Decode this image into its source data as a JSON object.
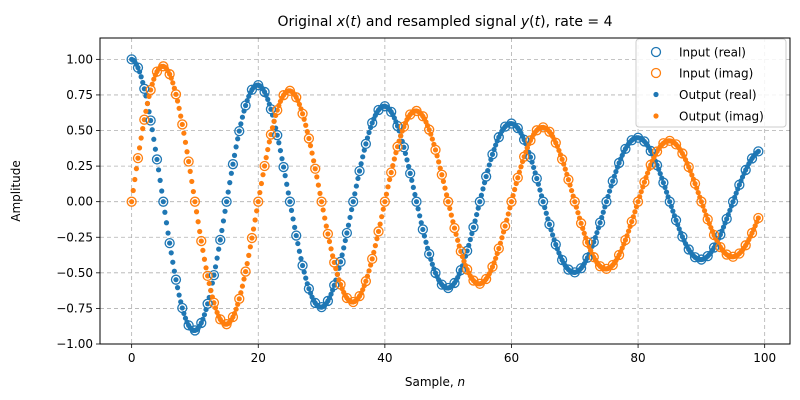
{
  "chart_data": {
    "type": "scatter",
    "title_parts": [
      "Original ",
      "x",
      "(",
      "t",
      ") and resampled signal ",
      "y",
      "(",
      "t",
      "), rate = 4"
    ],
    "xlabel_parts": [
      "Sample, ",
      "n"
    ],
    "ylabel": "Amplitude",
    "xlim": [
      -5,
      104
    ],
    "ylim": [
      -1.0,
      1.15
    ],
    "xticks": [
      0,
      20,
      40,
      60,
      80,
      100
    ],
    "xtick_labels": [
      "0",
      "20",
      "40",
      "60",
      "80",
      "100"
    ],
    "yticks": [
      -1.0,
      -0.75,
      -0.5,
      -0.25,
      0.0,
      0.25,
      0.5,
      0.75,
      1.0
    ],
    "ytick_labels": [
      "−1.00",
      "−0.75",
      "−0.50",
      "−0.25",
      "0.00",
      "0.25",
      "0.50",
      "0.75",
      "1.00"
    ],
    "grid": true,
    "legend_position": "top-right",
    "signal": {
      "frequency": 0.05,
      "decay": 0.01,
      "n_input": 100,
      "rate": 4
    },
    "series": [
      {
        "name": "Input (real)",
        "marker": "open-circle",
        "color": "#1f77b4",
        "part": "real",
        "sampling": "input"
      },
      {
        "name": "Input (imag)",
        "marker": "open-circle",
        "color": "#ff7f0e",
        "part": "imag",
        "sampling": "input"
      },
      {
        "name": "Output (real)",
        "marker": "dot",
        "color": "#1f77b4",
        "part": "real",
        "sampling": "output"
      },
      {
        "name": "Output (imag)",
        "marker": "dot",
        "color": "#ff7f0e",
        "part": "imag",
        "sampling": "output"
      }
    ]
  }
}
